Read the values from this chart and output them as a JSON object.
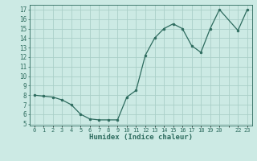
{
  "x": [
    0,
    1,
    2,
    3,
    4,
    5,
    6,
    7,
    8,
    9,
    10,
    11,
    12,
    13,
    14,
    15,
    16,
    17,
    18,
    19,
    20,
    22,
    23
  ],
  "y": [
    8.0,
    7.9,
    7.8,
    7.5,
    7.0,
    6.0,
    5.5,
    5.4,
    5.4,
    5.4,
    7.8,
    8.5,
    12.2,
    14.0,
    15.0,
    15.5,
    15.0,
    13.2,
    12.5,
    15.0,
    17.0,
    14.8,
    17.0
  ],
  "xlabel": "Humidex (Indice chaleur)",
  "xlim": [
    -0.5,
    23.5
  ],
  "ylim": [
    4.8,
    17.5
  ],
  "yticks": [
    5,
    6,
    7,
    8,
    9,
    10,
    11,
    12,
    13,
    14,
    15,
    16,
    17
  ],
  "xtick_labels": [
    "0",
    "1",
    "2",
    "3",
    "4",
    "5",
    "6",
    "7",
    "8",
    "9",
    "10",
    "11",
    "12",
    "13",
    "14",
    "15",
    "16",
    "17",
    "18",
    "19",
    "20",
    "",
    "22",
    "23"
  ],
  "xtick_positions": [
    0,
    1,
    2,
    3,
    4,
    5,
    6,
    7,
    8,
    9,
    10,
    11,
    12,
    13,
    14,
    15,
    16,
    17,
    18,
    19,
    20,
    21,
    22,
    23
  ],
  "line_color": "#2d6b5e",
  "marker_color": "#2d6b5e",
  "bg_color": "#cceae4",
  "grid_color": "#aacfc8",
  "tick_color": "#2d6b5e",
  "xlabel_color": "#2d6b5e"
}
